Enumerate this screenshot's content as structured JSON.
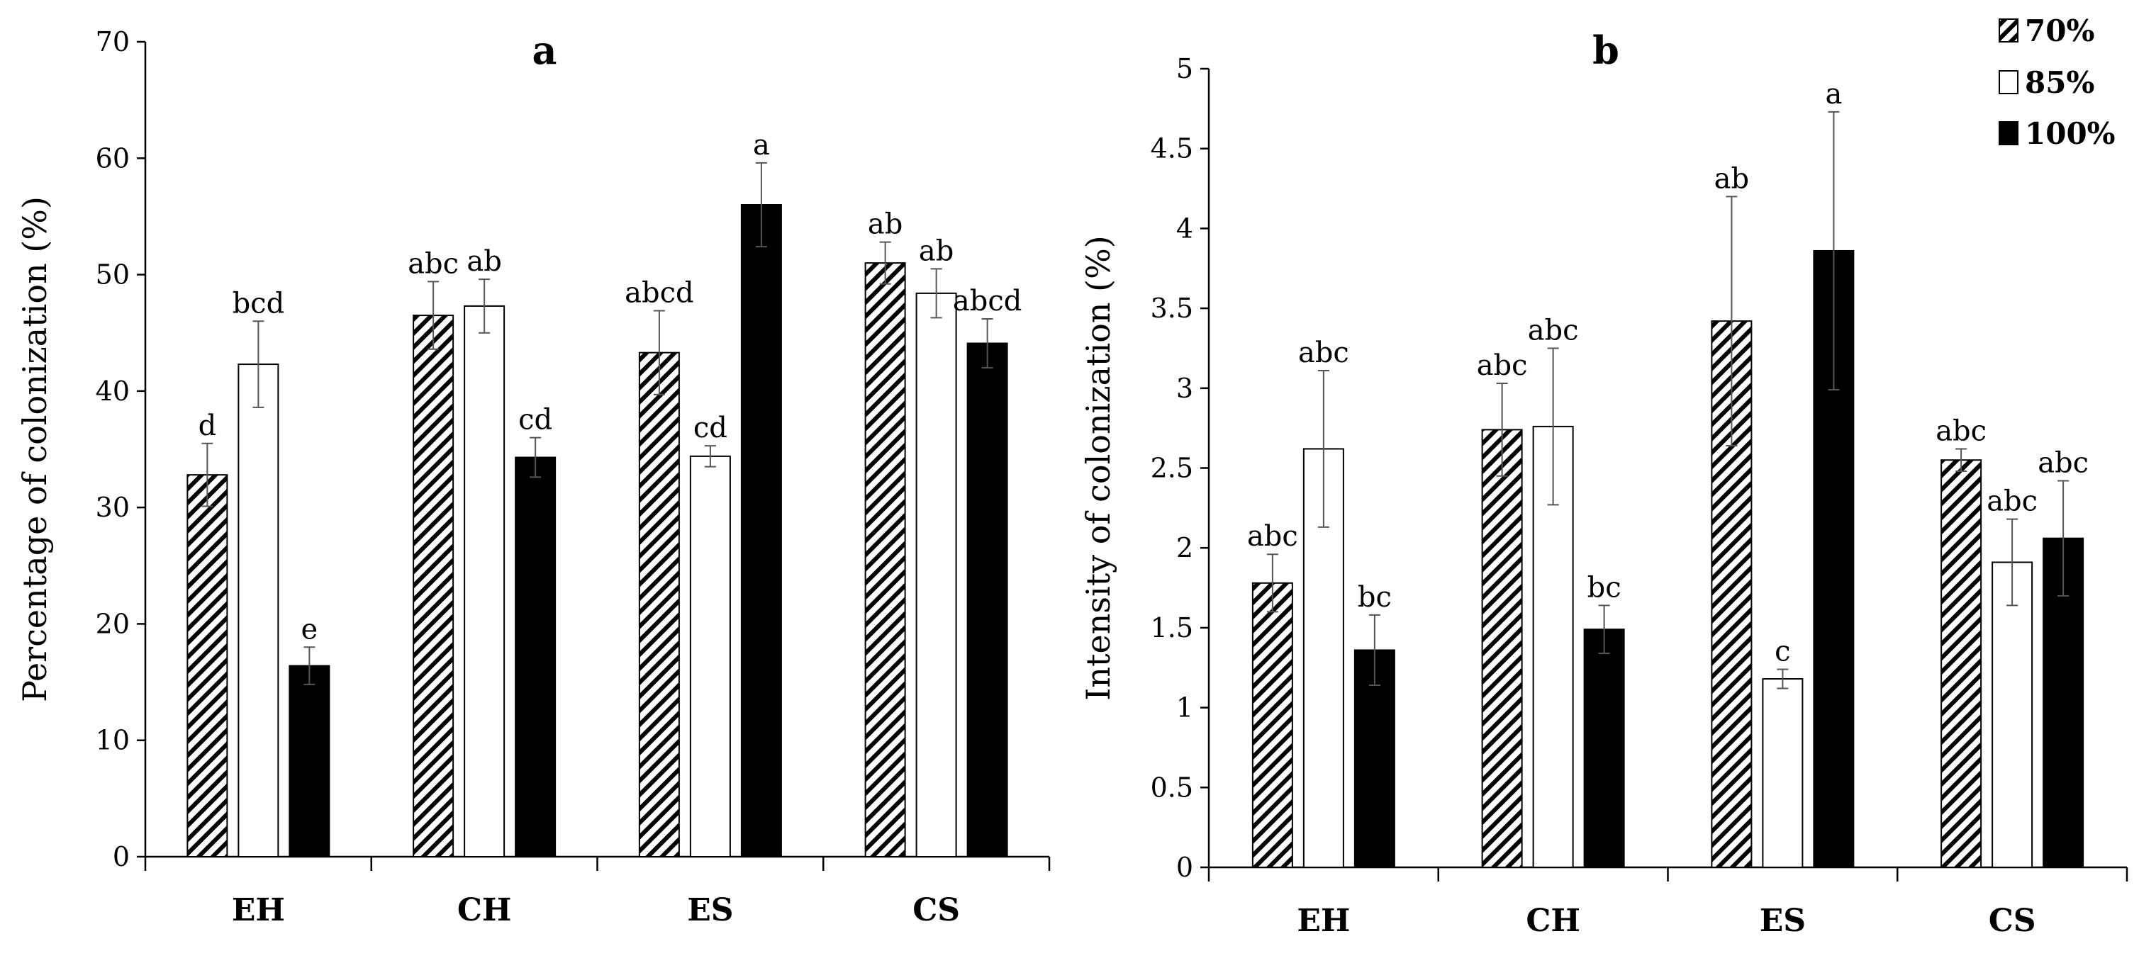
{
  "chart_data": [
    {
      "type": "bar",
      "panel": "a",
      "title": "a",
      "xlabel": "",
      "ylabel": "Percentage of colonization  (%)",
      "categories": [
        "EH",
        "CH",
        "ES",
        "CS"
      ],
      "ylim": [
        0,
        70
      ],
      "yticks": [
        "0",
        "10",
        "20",
        "30",
        "40",
        "50",
        "60",
        "70"
      ],
      "series": [
        {
          "name": "70%",
          "values": [
            32.8,
            46.5,
            43.3,
            51.0
          ],
          "errors": [
            2.7,
            2.9,
            3.6,
            1.8
          ],
          "letters": [
            "d",
            "abc",
            "abcd",
            "ab"
          ]
        },
        {
          "name": "85%",
          "values": [
            42.3,
            47.3,
            34.4,
            48.4
          ],
          "errors": [
            3.7,
            2.3,
            0.9,
            2.1
          ],
          "letters": [
            "bcd",
            "ab",
            "cd",
            "ab"
          ]
        },
        {
          "name": "100%",
          "values": [
            16.4,
            34.3,
            56.0,
            44.1
          ],
          "errors": [
            1.6,
            1.7,
            3.6,
            2.1
          ],
          "letters": [
            "e",
            "cd",
            "a",
            "abcd"
          ]
        }
      ]
    },
    {
      "type": "bar",
      "panel": "b",
      "title": "b",
      "xlabel": "",
      "ylabel": "Intensity of colonization (%)",
      "categories": [
        "EH",
        "CH",
        "ES",
        "CS"
      ],
      "ylim": [
        0,
        5
      ],
      "yticks": [
        "0",
        "0.5",
        "1",
        "1.5",
        "2",
        "2.5",
        "3",
        "3.5",
        "4",
        "4.5",
        "5"
      ],
      "series": [
        {
          "name": "70%",
          "values": [
            1.78,
            2.74,
            3.42,
            2.55
          ],
          "errors": [
            0.18,
            0.29,
            0.78,
            0.07
          ],
          "letters": [
            "abc",
            "abc",
            "ab",
            "abc"
          ]
        },
        {
          "name": "85%",
          "values": [
            2.62,
            2.76,
            1.18,
            1.91
          ],
          "errors": [
            0.49,
            0.49,
            0.06,
            0.27
          ],
          "letters": [
            "abc",
            "abc",
            "c",
            "abc"
          ]
        },
        {
          "name": "100%",
          "values": [
            1.36,
            1.49,
            3.86,
            2.06
          ],
          "errors": [
            0.22,
            0.15,
            0.87,
            0.36
          ],
          "letters": [
            "bc",
            "bc",
            "a",
            "abc"
          ]
        }
      ]
    }
  ],
  "legend": {
    "placement": "top-right",
    "items": [
      {
        "label": "70%",
        "fill": "hatch"
      },
      {
        "label": "85%",
        "fill": "white"
      },
      {
        "label": "100%",
        "fill": "black"
      }
    ]
  }
}
